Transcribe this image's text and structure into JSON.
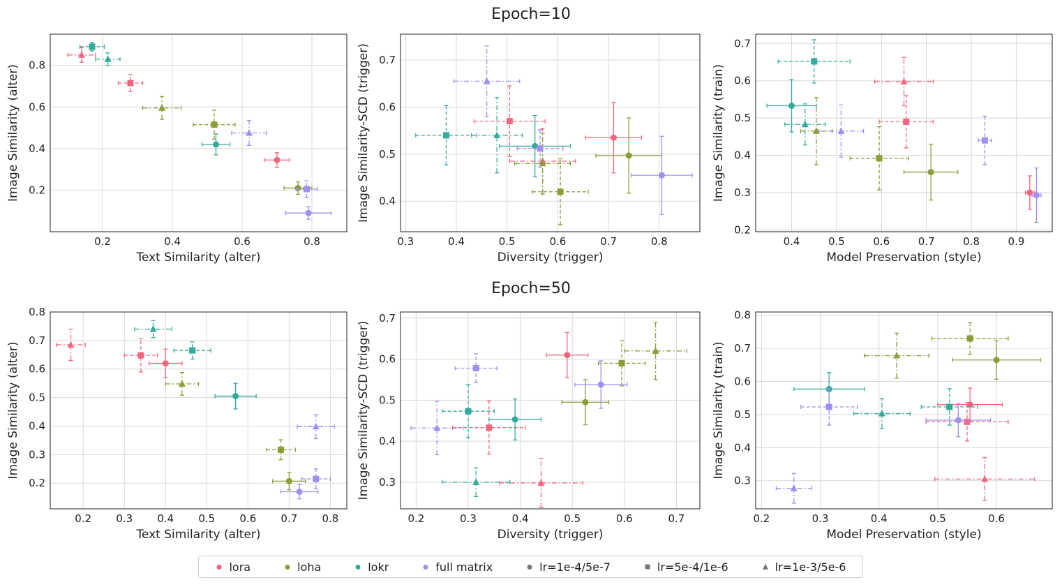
{
  "row_titles": [
    "Epoch=10",
    "Epoch=50"
  ],
  "legend": {
    "methods": [
      {
        "name": "lora",
        "color": "#f0677f"
      },
      {
        "name": "loha",
        "color": "#8b9d36"
      },
      {
        "name": "lokr",
        "color": "#33aa9a"
      },
      {
        "name": "full matrix",
        "color": "#a08ef0"
      }
    ],
    "lrs": [
      {
        "name": "lr=1e-4/5e-7",
        "marker": "circle",
        "dash": "solid"
      },
      {
        "name": "lr=5e-4/1e-6",
        "marker": "square",
        "dash": "dashed"
      },
      {
        "name": "lr=1e-3/5e-6",
        "marker": "triangle",
        "dash": "dashdot"
      }
    ]
  },
  "chart_data": [
    {
      "type": "scatter",
      "row": 0,
      "col": 0,
      "xlabel": "Text Similarity (alter)",
      "ylabel": "Image Similarity (alter)",
      "xlim": [
        0.05,
        0.9
      ],
      "ylim": [
        0.0,
        0.95
      ],
      "xticks": [
        0.2,
        0.4,
        0.6,
        0.8
      ],
      "yticks": [
        0.2,
        0.4,
        0.6,
        0.8
      ],
      "points": [
        {
          "method": "lora",
          "lr": 2,
          "x": 0.14,
          "y": 0.85,
          "xerr": 0.04,
          "yerr": 0.035
        },
        {
          "method": "lora",
          "lr": 1,
          "x": 0.28,
          "y": 0.715,
          "xerr": 0.035,
          "yerr": 0.04
        },
        {
          "method": "lora",
          "lr": 0,
          "x": 0.7,
          "y": 0.345,
          "xerr": 0.035,
          "yerr": 0.035
        },
        {
          "method": "loha",
          "lr": 2,
          "x": 0.37,
          "y": 0.595,
          "xerr": 0.055,
          "yerr": 0.055
        },
        {
          "method": "loha",
          "lr": 1,
          "x": 0.52,
          "y": 0.515,
          "xerr": 0.06,
          "yerr": 0.07
        },
        {
          "method": "loha",
          "lr": 0,
          "x": 0.76,
          "y": 0.21,
          "xerr": 0.04,
          "yerr": 0.03
        },
        {
          "method": "lokr",
          "lr": 1,
          "x": 0.17,
          "y": 0.89,
          "xerr": 0.035,
          "yerr": 0.02
        },
        {
          "method": "lokr",
          "lr": 2,
          "x": 0.215,
          "y": 0.83,
          "xerr": 0.035,
          "yerr": 0.03
        },
        {
          "method": "lokr",
          "lr": 0,
          "x": 0.525,
          "y": 0.42,
          "xerr": 0.04,
          "yerr": 0.05
        },
        {
          "method": "full matrix",
          "lr": 2,
          "x": 0.62,
          "y": 0.475,
          "xerr": 0.05,
          "yerr": 0.06
        },
        {
          "method": "full matrix",
          "lr": 1,
          "x": 0.785,
          "y": 0.205,
          "xerr": 0.03,
          "yerr": 0.04
        },
        {
          "method": "full matrix",
          "lr": 0,
          "x": 0.79,
          "y": 0.09,
          "xerr": 0.065,
          "yerr": 0.03
        }
      ]
    },
    {
      "type": "scatter",
      "row": 0,
      "col": 1,
      "xlabel": "Diversity (trigger)",
      "ylabel": "Image Similarity-SCD (trigger)",
      "xlim": [
        0.29,
        0.88
      ],
      "ylim": [
        0.335,
        0.755
      ],
      "xticks": [
        0.3,
        0.4,
        0.5,
        0.6,
        0.7,
        0.8
      ],
      "yticks": [
        0.4,
        0.5,
        0.6,
        0.7
      ],
      "points": [
        {
          "method": "lora",
          "lr": 1,
          "x": 0.505,
          "y": 0.57,
          "xerr": 0.07,
          "yerr": 0.075
        },
        {
          "method": "lora",
          "lr": 2,
          "x": 0.57,
          "y": 0.485,
          "xerr": 0.065,
          "yerr": 0.07
        },
        {
          "method": "lora",
          "lr": 0,
          "x": 0.71,
          "y": 0.535,
          "xerr": 0.055,
          "yerr": 0.075
        },
        {
          "method": "loha",
          "lr": 2,
          "x": 0.57,
          "y": 0.48,
          "xerr": 0.055,
          "yerr": 0.065
        },
        {
          "method": "loha",
          "lr": 1,
          "x": 0.605,
          "y": 0.42,
          "xerr": 0.055,
          "yerr": 0.07
        },
        {
          "method": "loha",
          "lr": 0,
          "x": 0.74,
          "y": 0.497,
          "xerr": 0.065,
          "yerr": 0.08
        },
        {
          "method": "lokr",
          "lr": 1,
          "x": 0.38,
          "y": 0.54,
          "xerr": 0.06,
          "yerr": 0.063
        },
        {
          "method": "lokr",
          "lr": 2,
          "x": 0.48,
          "y": 0.54,
          "xerr": 0.05,
          "yerr": 0.08
        },
        {
          "method": "lokr",
          "lr": 0,
          "x": 0.555,
          "y": 0.517,
          "xerr": 0.07,
          "yerr": 0.065
        },
        {
          "method": "full matrix",
          "lr": 2,
          "x": 0.46,
          "y": 0.655,
          "xerr": 0.065,
          "yerr": 0.075
        },
        {
          "method": "full matrix",
          "lr": 1,
          "x": 0.565,
          "y": 0.512,
          "xerr": 0.045,
          "yerr": 0.04
        },
        {
          "method": "full matrix",
          "lr": 0,
          "x": 0.805,
          "y": 0.455,
          "xerr": 0.06,
          "yerr": 0.083
        }
      ]
    },
    {
      "type": "scatter",
      "row": 0,
      "col": 2,
      "xlabel": "Model Preservation (style)",
      "ylabel": "Image Similarity (train)",
      "xlim": [
        0.32,
        0.98
      ],
      "ylim": [
        0.195,
        0.725
      ],
      "xticks": [
        0.4,
        0.5,
        0.6,
        0.7,
        0.8,
        0.9
      ],
      "yticks": [
        0.2,
        0.3,
        0.4,
        0.5,
        0.6,
        0.7
      ],
      "points": [
        {
          "method": "lora",
          "lr": 2,
          "x": 0.65,
          "y": 0.598,
          "xerr": 0.065,
          "yerr": 0.065
        },
        {
          "method": "lora",
          "lr": 1,
          "x": 0.655,
          "y": 0.49,
          "xerr": 0.06,
          "yerr": 0.07
        },
        {
          "method": "lora",
          "lr": 0,
          "x": 0.93,
          "y": 0.3,
          "xerr": 0.01,
          "yerr": 0.045
        },
        {
          "method": "loha",
          "lr": 2,
          "x": 0.455,
          "y": 0.465,
          "xerr": 0.035,
          "yerr": 0.09
        },
        {
          "method": "loha",
          "lr": 1,
          "x": 0.595,
          "y": 0.392,
          "xerr": 0.065,
          "yerr": 0.085
        },
        {
          "method": "loha",
          "lr": 0,
          "x": 0.71,
          "y": 0.355,
          "xerr": 0.06,
          "yerr": 0.075
        },
        {
          "method": "lokr",
          "lr": 1,
          "x": 0.45,
          "y": 0.652,
          "xerr": 0.08,
          "yerr": 0.058
        },
        {
          "method": "lokr",
          "lr": 0,
          "x": 0.4,
          "y": 0.533,
          "xerr": 0.055,
          "yerr": 0.07
        },
        {
          "method": "lokr",
          "lr": 2,
          "x": 0.43,
          "y": 0.483,
          "xerr": 0.045,
          "yerr": 0.055
        },
        {
          "method": "full matrix",
          "lr": 2,
          "x": 0.51,
          "y": 0.465,
          "xerr": 0.05,
          "yerr": 0.07
        },
        {
          "method": "full matrix",
          "lr": 1,
          "x": 0.83,
          "y": 0.44,
          "xerr": 0.015,
          "yerr": 0.065
        },
        {
          "method": "full matrix",
          "lr": 0,
          "x": 0.945,
          "y": 0.293,
          "xerr": 0.01,
          "yerr": 0.073
        }
      ]
    },
    {
      "type": "scatter",
      "row": 1,
      "col": 0,
      "xlabel": "Text Similarity (alter)",
      "ylabel": "Image Similarity (alter)",
      "xlim": [
        0.12,
        0.84
      ],
      "ylim": [
        0.11,
        0.8
      ],
      "xticks": [
        0.2,
        0.3,
        0.4,
        0.5,
        0.6,
        0.7,
        0.8
      ],
      "yticks": [
        0.2,
        0.3,
        0.4,
        0.5,
        0.6,
        0.7,
        0.8
      ],
      "points": [
        {
          "method": "lora",
          "lr": 2,
          "x": 0.17,
          "y": 0.685,
          "xerr": 0.035,
          "yerr": 0.055
        },
        {
          "method": "lora",
          "lr": 1,
          "x": 0.34,
          "y": 0.648,
          "xerr": 0.04,
          "yerr": 0.058
        },
        {
          "method": "lora",
          "lr": 0,
          "x": 0.4,
          "y": 0.62,
          "xerr": 0.04,
          "yerr": 0.05
        },
        {
          "method": "loha",
          "lr": 2,
          "x": 0.44,
          "y": 0.548,
          "xerr": 0.04,
          "yerr": 0.04
        },
        {
          "method": "loha",
          "lr": 1,
          "x": 0.68,
          "y": 0.317,
          "xerr": 0.035,
          "yerr": 0.035
        },
        {
          "method": "loha",
          "lr": 0,
          "x": 0.7,
          "y": 0.207,
          "xerr": 0.04,
          "yerr": 0.03
        },
        {
          "method": "lokr",
          "lr": 2,
          "x": 0.37,
          "y": 0.74,
          "xerr": 0.045,
          "yerr": 0.03
        },
        {
          "method": "lokr",
          "lr": 1,
          "x": 0.465,
          "y": 0.665,
          "xerr": 0.045,
          "yerr": 0.03
        },
        {
          "method": "lokr",
          "lr": 0,
          "x": 0.57,
          "y": 0.505,
          "xerr": 0.05,
          "yerr": 0.045
        },
        {
          "method": "full matrix",
          "lr": 2,
          "x": 0.765,
          "y": 0.398,
          "xerr": 0.045,
          "yerr": 0.042
        },
        {
          "method": "full matrix",
          "lr": 1,
          "x": 0.765,
          "y": 0.215,
          "xerr": 0.035,
          "yerr": 0.035
        },
        {
          "method": "full matrix",
          "lr": 0,
          "x": 0.725,
          "y": 0.17,
          "xerr": 0.045,
          "yerr": 0.025
        }
      ]
    },
    {
      "type": "scatter",
      "row": 1,
      "col": 1,
      "xlabel": "Diversity (trigger)",
      "ylabel": "Image Similarity-SCD (trigger)",
      "xlim": [
        0.17,
        0.745
      ],
      "ylim": [
        0.235,
        0.715
      ],
      "xticks": [
        0.2,
        0.3,
        0.4,
        0.5,
        0.6,
        0.7
      ],
      "yticks": [
        0.3,
        0.4,
        0.5,
        0.6,
        0.7
      ],
      "points": [
        {
          "method": "lora",
          "lr": 0,
          "x": 0.49,
          "y": 0.61,
          "xerr": 0.04,
          "yerr": 0.055
        },
        {
          "method": "lora",
          "lr": 1,
          "x": 0.34,
          "y": 0.433,
          "xerr": 0.07,
          "yerr": 0.065
        },
        {
          "method": "lora",
          "lr": 2,
          "x": 0.44,
          "y": 0.298,
          "xerr": 0.08,
          "yerr": 0.06
        },
        {
          "method": "loha",
          "lr": 2,
          "x": 0.66,
          "y": 0.62,
          "xerr": 0.06,
          "yerr": 0.07
        },
        {
          "method": "loha",
          "lr": 1,
          "x": 0.595,
          "y": 0.59,
          "xerr": 0.045,
          "yerr": 0.055
        },
        {
          "method": "loha",
          "lr": 0,
          "x": 0.525,
          "y": 0.495,
          "xerr": 0.045,
          "yerr": 0.055
        },
        {
          "method": "lokr",
          "lr": 1,
          "x": 0.3,
          "y": 0.473,
          "xerr": 0.05,
          "yerr": 0.065
        },
        {
          "method": "lokr",
          "lr": 0,
          "x": 0.39,
          "y": 0.453,
          "xerr": 0.05,
          "yerr": 0.05
        },
        {
          "method": "lokr",
          "lr": 2,
          "x": 0.315,
          "y": 0.3,
          "xerr": 0.065,
          "yerr": 0.035
        },
        {
          "method": "full matrix",
          "lr": 1,
          "x": 0.315,
          "y": 0.578,
          "xerr": 0.04,
          "yerr": 0.035
        },
        {
          "method": "full matrix",
          "lr": 0,
          "x": 0.555,
          "y": 0.538,
          "xerr": 0.05,
          "yerr": 0.058
        },
        {
          "method": "full matrix",
          "lr": 2,
          "x": 0.24,
          "y": 0.432,
          "xerr": 0.05,
          "yerr": 0.065
        }
      ]
    },
    {
      "type": "scatter",
      "row": 1,
      "col": 2,
      "xlabel": "Model Preservation (style)",
      "ylabel": "Image Similarity (train)",
      "xlim": [
        0.19,
        0.695
      ],
      "ylim": [
        0.215,
        0.81
      ],
      "xticks": [
        0.2,
        0.3,
        0.4,
        0.5,
        0.6
      ],
      "yticks": [
        0.3,
        0.4,
        0.5,
        0.6,
        0.7,
        0.8
      ],
      "points": [
        {
          "method": "lora",
          "lr": 0,
          "x": 0.555,
          "y": 0.53,
          "xerr": 0.055,
          "yerr": 0.05
        },
        {
          "method": "lora",
          "lr": 1,
          "x": 0.55,
          "y": 0.478,
          "xerr": 0.07,
          "yerr": 0.058
        },
        {
          "method": "lora",
          "lr": 2,
          "x": 0.58,
          "y": 0.305,
          "xerr": 0.085,
          "yerr": 0.065
        },
        {
          "method": "loha",
          "lr": 1,
          "x": 0.555,
          "y": 0.73,
          "xerr": 0.065,
          "yerr": 0.048
        },
        {
          "method": "loha",
          "lr": 0,
          "x": 0.6,
          "y": 0.665,
          "xerr": 0.075,
          "yerr": 0.058
        },
        {
          "method": "loha",
          "lr": 2,
          "x": 0.43,
          "y": 0.678,
          "xerr": 0.055,
          "yerr": 0.068
        },
        {
          "method": "lokr",
          "lr": 0,
          "x": 0.315,
          "y": 0.577,
          "xerr": 0.06,
          "yerr": 0.05
        },
        {
          "method": "lokr",
          "lr": 1,
          "x": 0.52,
          "y": 0.523,
          "xerr": 0.048,
          "yerr": 0.055
        },
        {
          "method": "lokr",
          "lr": 2,
          "x": 0.405,
          "y": 0.503,
          "xerr": 0.048,
          "yerr": 0.045
        },
        {
          "method": "full matrix",
          "lr": 1,
          "x": 0.315,
          "y": 0.523,
          "xerr": 0.048,
          "yerr": 0.055
        },
        {
          "method": "full matrix",
          "lr": 0,
          "x": 0.535,
          "y": 0.483,
          "xerr": 0.055,
          "yerr": 0.05
        },
        {
          "method": "full matrix",
          "lr": 2,
          "x": 0.255,
          "y": 0.277,
          "xerr": 0.03,
          "yerr": 0.045
        }
      ]
    }
  ]
}
